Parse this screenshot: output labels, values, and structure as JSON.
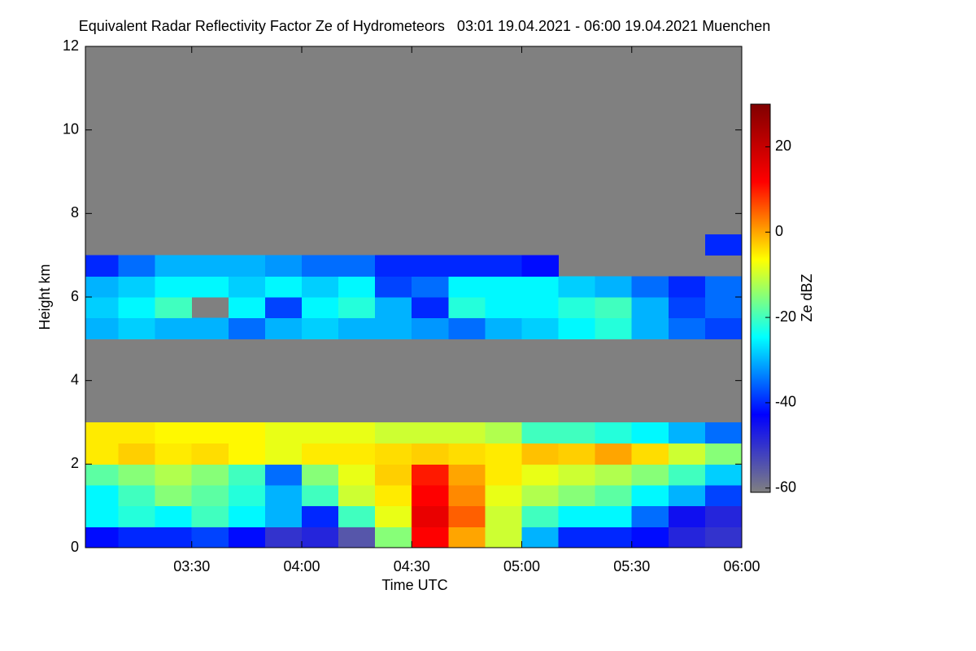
{
  "chart_data": {
    "type": "heatmap",
    "title": "Equivalent Radar Reflectivity Factor Ze of Hydrometeors   03:01 19.04.2021 - 06:00 19.04.2021 Muenchen",
    "x_label": "Time UTC",
    "y_label": "Height km",
    "colorbar_label": "Ze dBZ",
    "xlim": [
      181,
      360
    ],
    "ylim": [
      0,
      12
    ],
    "zlim": [
      -61,
      30
    ],
    "xticks": [
      {
        "value": 210,
        "label": "03:30"
      },
      {
        "value": 240,
        "label": "04:00"
      },
      {
        "value": 270,
        "label": "04:30"
      },
      {
        "value": 300,
        "label": "05:00"
      },
      {
        "value": 330,
        "label": "05:30"
      },
      {
        "value": 360,
        "label": "06:00"
      }
    ],
    "yticks": [
      0,
      2,
      4,
      6,
      8,
      10,
      12
    ],
    "zticks": [
      20,
      0,
      -20,
      -40,
      -60
    ],
    "colormap": [
      "#808080",
      "#0000ff",
      "#00ffff",
      "#ffff00",
      "#ff0000",
      "#800000"
    ],
    "missing_color": "#808080",
    "x_edges": [
      181,
      190,
      200,
      210,
      220,
      230,
      240,
      250,
      260,
      270,
      280,
      290,
      300,
      310,
      320,
      330,
      340,
      350,
      360
    ],
    "y_edges": [
      0,
      0.5,
      1,
      1.5,
      2,
      2.5,
      3,
      3.5,
      4,
      4.5,
      5,
      5.5,
      6,
      6.5,
      7,
      7.5
    ],
    "z": [
      [
        -42,
        -40,
        -40,
        -38,
        -42,
        -50,
        -48,
        -55,
        -15,
        12,
        0,
        -10,
        -30,
        -40,
        -40,
        -42,
        -48,
        -50
      ],
      [
        -25,
        -22,
        -25,
        -20,
        -25,
        -30,
        -40,
        -20,
        -8,
        15,
        5,
        -10,
        -20,
        -25,
        -25,
        -35,
        -45,
        -48
      ],
      [
        -25,
        -20,
        -15,
        -18,
        -22,
        -30,
        -20,
        -10,
        -5,
        12,
        2,
        -8,
        -12,
        -15,
        -18,
        -25,
        -30,
        -38
      ],
      [
        -18,
        -15,
        -12,
        -15,
        -20,
        -35,
        -15,
        -8,
        -3,
        10,
        0,
        -5,
        -8,
        -10,
        -12,
        -15,
        -20,
        -28
      ],
      [
        -5,
        -3,
        -5,
        -4,
        -6,
        -8,
        -5,
        -5,
        -4,
        -3,
        -4,
        -5,
        -2,
        -3,
        0,
        -4,
        -10,
        -15
      ],
      [
        -5,
        -5,
        -6,
        -6,
        -6,
        -8,
        -8,
        -8,
        -10,
        -10,
        -10,
        -12,
        -20,
        -20,
        -22,
        -25,
        -30,
        -35
      ],
      [
        null,
        null,
        null,
        null,
        null,
        null,
        null,
        null,
        null,
        null,
        null,
        null,
        null,
        null,
        null,
        null,
        null,
        null
      ],
      [
        null,
        null,
        null,
        null,
        null,
        null,
        null,
        null,
        null,
        null,
        null,
        null,
        null,
        null,
        null,
        null,
        null,
        null
      ],
      [
        null,
        null,
        null,
        null,
        null,
        null,
        null,
        null,
        null,
        null,
        null,
        null,
        null,
        null,
        null,
        null,
        null,
        null
      ],
      [
        null,
        null,
        null,
        null,
        null,
        null,
        null,
        null,
        null,
        null,
        null,
        null,
        null,
        null,
        null,
        null,
        null,
        null
      ],
      [
        -30,
        -28,
        -30,
        -30,
        -35,
        -30,
        -28,
        -30,
        -30,
        -32,
        -35,
        -30,
        -28,
        -25,
        -22,
        -30,
        -35,
        -38
      ],
      [
        -28,
        -25,
        -20,
        null,
        -25,
        -38,
        -25,
        -22,
        -30,
        -40,
        -22,
        -25,
        -25,
        -22,
        -20,
        -30,
        -38,
        -35
      ],
      [
        -30,
        -28,
        -25,
        -25,
        -28,
        -25,
        -28,
        -25,
        -38,
        -35,
        -25,
        -25,
        -25,
        -28,
        -30,
        -35,
        -40,
        -35
      ],
      [
        -40,
        -35,
        -30,
        -30,
        -30,
        -32,
        -35,
        -35,
        -40,
        -40,
        -40,
        -40,
        -42,
        null,
        null,
        null,
        null,
        null
      ],
      [
        null,
        null,
        null,
        null,
        null,
        null,
        null,
        null,
        null,
        null,
        null,
        null,
        null,
        null,
        null,
        null,
        null,
        -40
      ]
    ]
  }
}
